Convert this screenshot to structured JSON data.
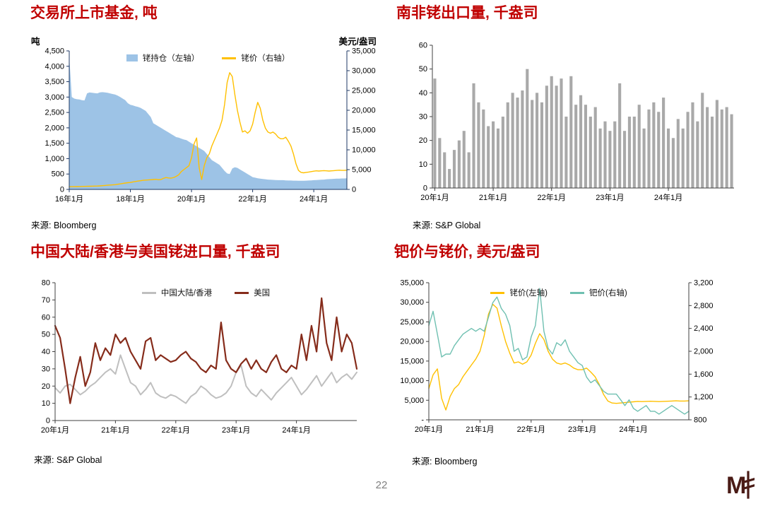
{
  "page": {
    "number": "22"
  },
  "chart_data": [
    {
      "id": "etf-holdings",
      "type": "area",
      "title": "交易所上市基金, 吨",
      "source": "来源: Bloomberg",
      "axis_color": "#1F3864",
      "left_axis": {
        "label": "吨",
        "min": 0,
        "max": 4500,
        "step": 500,
        "tick_labels": [
          "0",
          "500",
          "1,000",
          "1,500",
          "2,000",
          "2,500",
          "3,000",
          "3,500",
          "4,000",
          "4,500"
        ]
      },
      "right_axis": {
        "label": "美元/盎司",
        "min": 0,
        "max": 35000,
        "step": 5000,
        "tick_labels": [
          "0",
          "5,000",
          "10,000",
          "15,000",
          "20,000",
          "25,000",
          "30,000",
          "35,000"
        ]
      },
      "x_ticks": [
        "16年1月",
        "18年1月",
        "20年1月",
        "22年1月",
        "24年1月"
      ],
      "x_tick_positions": [
        0,
        24,
        48,
        72,
        96
      ],
      "series": [
        {
          "name": "铑持仓（左轴）",
          "axis": "left",
          "kind": "area",
          "color": "#9DC3E6",
          "values": [
            4300,
            3000,
            2950,
            2930,
            2920,
            2900,
            2890,
            3120,
            3150,
            3140,
            3130,
            3120,
            3150,
            3160,
            3150,
            3140,
            3120,
            3100,
            3080,
            3050,
            3000,
            2950,
            2900,
            2800,
            2750,
            2730,
            2700,
            2680,
            2650,
            2600,
            2550,
            2450,
            2350,
            2150,
            2100,
            2050,
            2000,
            1950,
            1900,
            1850,
            1800,
            1750,
            1700,
            1680,
            1650,
            1620,
            1600,
            1550,
            1500,
            1450,
            1400,
            1350,
            1300,
            1250,
            1150,
            1050,
            950,
            900,
            850,
            800,
            700,
            600,
            520,
            500,
            680,
            720,
            700,
            650,
            600,
            550,
            500,
            450,
            400,
            380,
            360,
            350,
            340,
            330,
            320,
            315,
            310,
            305,
            300,
            300,
            300,
            295,
            290,
            290,
            285,
            285,
            280,
            280,
            280,
            285,
            290,
            295,
            300,
            305,
            310,
            315,
            320,
            330,
            335,
            340,
            345,
            350,
            350,
            355,
            355,
            360
          ]
        },
        {
          "name": "铑价（右轴）",
          "axis": "right",
          "kind": "line",
          "color": "#FFC000",
          "width": 1.4,
          "values": [
            680,
            690,
            700,
            720,
            740,
            750,
            760,
            780,
            800,
            820,
            840,
            860,
            900,
            950,
            1000,
            1050,
            1100,
            1150,
            1200,
            1300,
            1400,
            1500,
            1600,
            1700,
            1750,
            1900,
            2000,
            2100,
            2200,
            2300,
            2350,
            2400,
            2450,
            2500,
            2550,
            2450,
            2500,
            2800,
            3000,
            2900,
            2850,
            3000,
            3300,
            3700,
            4500,
            5000,
            5500,
            6000,
            8000,
            11500,
            13000,
            5500,
            2500,
            6000,
            8000,
            9000,
            11000,
            12500,
            14000,
            15500,
            17500,
            21500,
            27000,
            29500,
            28500,
            24000,
            20000,
            17000,
            14500,
            14800,
            14200,
            14800,
            16500,
            19500,
            22000,
            20500,
            17500,
            15500,
            14500,
            14200,
            14500,
            14000,
            13200,
            12800,
            12800,
            13200,
            12200,
            11000,
            9000,
            6500,
            4800,
            4300,
            4200,
            4300,
            4400,
            4500,
            4600,
            4700,
            4650,
            4700,
            4750,
            4700,
            4650,
            4700,
            4750,
            4800,
            4850,
            4800,
            4800,
            4850
          ]
        }
      ]
    },
    {
      "id": "sa-exports",
      "type": "bar",
      "title": "南非铑出口量, 千盎司",
      "source": "来源: S&P Global",
      "axis_color": "#404040",
      "left_axis": {
        "label": "",
        "min": 0,
        "max": 60,
        "step": 10,
        "tick_labels": [
          "0",
          "10",
          "20",
          "30",
          "40",
          "50",
          "60"
        ]
      },
      "x_ticks": [
        "20年1月",
        "21年1月",
        "22年1月",
        "23年1月",
        "24年1月"
      ],
      "x_tick_positions": [
        0,
        12,
        24,
        36,
        48
      ],
      "series": [
        {
          "name": "南非铑出口量",
          "axis": "left",
          "kind": "bar",
          "color": "#A9A9A9",
          "values": [
            46,
            21,
            15,
            8,
            16,
            20,
            24,
            15,
            44,
            36,
            33,
            26,
            28,
            25,
            30,
            36,
            40,
            38,
            41,
            50,
            37,
            40,
            36,
            43,
            47,
            43,
            46,
            30,
            47,
            35,
            39,
            35,
            30,
            34,
            25,
            28,
            24,
            28,
            44,
            24,
            30,
            30,
            35,
            25,
            33,
            36,
            32,
            38,
            25,
            21,
            29,
            25,
            32,
            36,
            28,
            40,
            34,
            30,
            37,
            33,
            34,
            31
          ]
        }
      ]
    },
    {
      "id": "imports-cn-us",
      "type": "line",
      "title": "中国大陆/香港与美国铑进口量, 千盎司",
      "source": "来源: S&P Global",
      "axis_color": "#404040",
      "left_axis": {
        "label": "",
        "min": 0,
        "max": 80,
        "step": 10,
        "tick_labels": [
          "0",
          "10",
          "20",
          "30",
          "40",
          "50",
          "60",
          "70",
          "80"
        ]
      },
      "x_ticks": [
        "20年1月",
        "21年1月",
        "22年1月",
        "23年1月",
        "24年1月"
      ],
      "x_tick_positions": [
        0,
        12,
        24,
        36,
        48
      ],
      "series": [
        {
          "name": "中国大陆/香港",
          "axis": "left",
          "kind": "line",
          "color": "#BFBFBF",
          "width": 2,
          "values": [
            19,
            16,
            20,
            21,
            18,
            15,
            17,
            20,
            22,
            25,
            28,
            30,
            27,
            38,
            30,
            22,
            20,
            15,
            18,
            22,
            16,
            14,
            13,
            15,
            14,
            12,
            10,
            14,
            16,
            20,
            18,
            15,
            13,
            14,
            16,
            20,
            28,
            32,
            20,
            16,
            14,
            18,
            15,
            12,
            16,
            19,
            22,
            25,
            20,
            15,
            18,
            22,
            26,
            20,
            24,
            28,
            22,
            25,
            27,
            24,
            28
          ]
        },
        {
          "name": "美国",
          "axis": "left",
          "kind": "line",
          "color": "#862C1B",
          "width": 2.2,
          "values": [
            55,
            48,
            30,
            10,
            25,
            37,
            20,
            28,
            45,
            35,
            42,
            38,
            50,
            45,
            48,
            40,
            35,
            30,
            46,
            48,
            35,
            38,
            36,
            34,
            35,
            38,
            40,
            36,
            34,
            30,
            28,
            32,
            30,
            57,
            35,
            30,
            28,
            33,
            36,
            30,
            35,
            30,
            28,
            34,
            38,
            30,
            28,
            32,
            30,
            50,
            35,
            55,
            40,
            71,
            45,
            35,
            60,
            40,
            50,
            45,
            30
          ]
        }
      ]
    },
    {
      "id": "pd-rh-price",
      "type": "line",
      "title": "钯价与铑价, 美元/盎司",
      "source": "来源: Bloomberg",
      "axis_color": "#404040",
      "left_axis": {
        "label": "",
        "min": 0,
        "max": 35000,
        "step": 5000,
        "tick_labels": [
          "-",
          "5,000",
          "10,000",
          "15,000",
          "20,000",
          "25,000",
          "30,000",
          "35,000"
        ]
      },
      "right_axis": {
        "label": "",
        "min": 800,
        "max": 3200,
        "step": 400,
        "tick_labels": [
          "800",
          "1,200",
          "1,600",
          "2,000",
          "2,400",
          "2,800",
          "3,200"
        ]
      },
      "x_ticks": [
        "20年1月",
        "21年1月",
        "22年1月",
        "23年1月",
        "24年1月"
      ],
      "x_tick_positions": [
        0,
        12,
        24,
        36,
        48
      ],
      "series": [
        {
          "name": "铑价(左轴)",
          "axis": "left",
          "kind": "line",
          "color": "#FFC000",
          "width": 1.4,
          "values": [
            8000,
            11500,
            13000,
            5500,
            2500,
            6000,
            8000,
            9000,
            11000,
            12500,
            14000,
            15500,
            17500,
            21500,
            27000,
            29500,
            28500,
            24000,
            20000,
            17000,
            14500,
            14800,
            14200,
            14800,
            16500,
            19500,
            22000,
            20500,
            17500,
            15500,
            14500,
            14200,
            14500,
            14000,
            13200,
            12800,
            12800,
            13200,
            12200,
            11000,
            9000,
            6500,
            4800,
            4300,
            4200,
            4300,
            4400,
            4500,
            4600,
            4700,
            4650,
            4700,
            4750,
            4700,
            4650,
            4700,
            4750,
            4800,
            4850,
            4800,
            4800,
            4850
          ]
        },
        {
          "name": "钯价(右轴)",
          "axis": "right",
          "kind": "line",
          "color": "#6FC0B1",
          "width": 1.4,
          "values": [
            2450,
            2700,
            2300,
            1900,
            1950,
            1950,
            2100,
            2200,
            2300,
            2350,
            2400,
            2350,
            2400,
            2350,
            2600,
            2850,
            2950,
            2750,
            2650,
            2450,
            2000,
            2050,
            1850,
            1900,
            2250,
            2450,
            3100,
            2350,
            2050,
            1950,
            2150,
            2100,
            2200,
            2000,
            1900,
            1800,
            1750,
            1550,
            1450,
            1500,
            1400,
            1300,
            1250,
            1250,
            1250,
            1150,
            1050,
            1150,
            1000,
            950,
            1000,
            1050,
            950,
            950,
            900,
            950,
            1000,
            1050,
            1000,
            950,
            900,
            950
          ]
        }
      ]
    }
  ]
}
